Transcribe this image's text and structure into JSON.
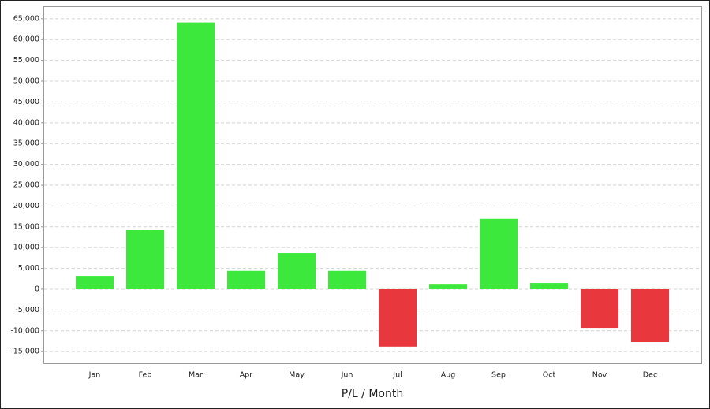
{
  "chart_data": {
    "type": "bar",
    "x_label": "P/L / Month",
    "categories": [
      "Jan",
      "Feb",
      "Mar",
      "Apr",
      "May",
      "Jun",
      "Jul",
      "Aug",
      "Sep",
      "Oct",
      "Nov",
      "Dec"
    ],
    "values": [
      3200,
      14200,
      64100,
      4400,
      8700,
      4400,
      -13800,
      1100,
      16900,
      1500,
      -9300,
      -12700
    ],
    "positive_color": "#3de83d",
    "negative_color": "#e8383d",
    "ylim": [
      -18000,
      68000
    ],
    "yticks": [
      {
        "value": -15000,
        "label": "-15,000"
      },
      {
        "value": -10000,
        "label": "-10,000"
      },
      {
        "value": -5000,
        "label": "-5,000"
      },
      0,
      {
        "value": 5000,
        "label": "5,000"
      },
      {
        "value": 10000,
        "label": "10,000"
      },
      {
        "value": 15000,
        "label": "15,000"
      },
      {
        "value": 20000,
        "label": "20,000"
      },
      {
        "value": 25000,
        "label": "25,000"
      },
      {
        "value": 30000,
        "label": "30,000"
      },
      {
        "value": 35000,
        "label": "35,000"
      },
      {
        "value": 40000,
        "label": "40,000"
      },
      {
        "value": 45000,
        "label": "45,000"
      },
      {
        "value": 50000,
        "label": "50,000"
      },
      {
        "value": 55000,
        "label": "55,000"
      },
      {
        "value": 60000,
        "label": "60,000"
      },
      {
        "value": 65000,
        "label": "65,000"
      }
    ],
    "grid": true
  }
}
